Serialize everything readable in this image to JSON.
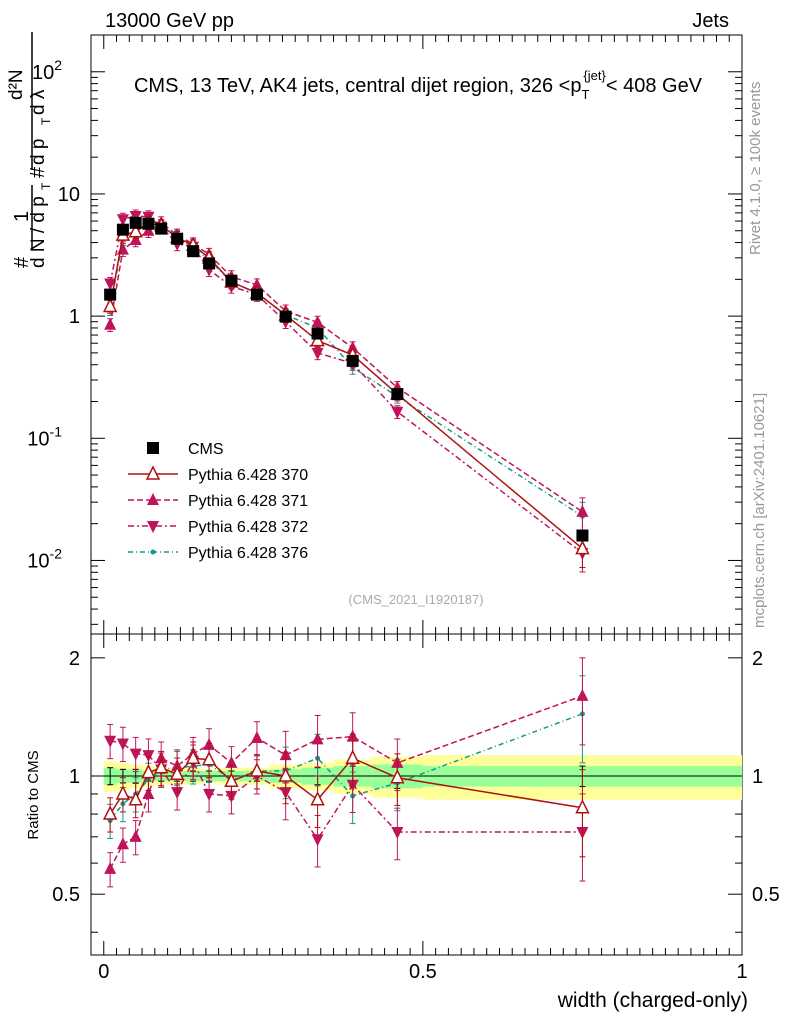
{
  "header": {
    "left": "13000 GeV pp",
    "right": "Jets"
  },
  "side_labels": {
    "rivet": "Rivet 4.1.0, ≥ 100k events",
    "mcplots": "mcplots.cern.ch [arXiv:2401.10621]"
  },
  "chart_data": [
    {
      "type": "line",
      "title": "CMS, 13 TeV, AK4 jets, central dijet region, 326 <p_T^{jet}< 408 GeV",
      "analysis_tag": "(CMS_2021_I1920187)",
      "xlabel": "width (charged-only)",
      "ylabel": "1/dN/dpT · d²N/dpT dλ",
      "yscale": "log",
      "xlim": [
        -0.02,
        1.0
      ],
      "ylim": [
        0.0025,
        200
      ],
      "y_tick_labels": [
        "10^{-2}",
        "10^{-1}",
        "1",
        "10",
        "10^{2}"
      ],
      "x_tick_labels": [
        "0",
        "0.5",
        "1"
      ],
      "x": [
        0.01,
        0.03,
        0.05,
        0.07,
        0.09,
        0.115,
        0.14,
        0.165,
        0.2,
        0.24,
        0.285,
        0.335,
        0.39,
        0.46,
        0.75
      ],
      "x_edges": [
        0.0,
        0.02,
        0.04,
        0.06,
        0.08,
        0.1,
        0.13,
        0.15,
        0.18,
        0.22,
        0.26,
        0.31,
        0.36,
        0.42,
        0.5,
        1.0
      ],
      "legend": [
        "CMS",
        "Pythia 6.428 370",
        "Pythia 6.428 371",
        "Pythia 6.428 372",
        "Pythia 6.428 376"
      ],
      "series": [
        {
          "name": "CMS",
          "color": "#000000",
          "marker": "square",
          "values": [
            1.5,
            5.1,
            5.8,
            5.7,
            5.2,
            4.3,
            3.4,
            2.7,
            1.95,
            1.5,
            0.99,
            0.72,
            0.43,
            0.23,
            0.016
          ]
        },
        {
          "name": "Pythia 6.428 370",
          "color": "#b01010",
          "marker": "triangle-up-open",
          "dash": "",
          "values": [
            1.2,
            4.6,
            4.9,
            5.8,
            5.5,
            4.4,
            3.8,
            3.0,
            1.9,
            1.55,
            1.02,
            0.63,
            0.48,
            0.23,
            0.0125
          ]
        },
        {
          "name": "Pythia 6.428 371",
          "color": "#c0145a",
          "marker": "triangle-up",
          "dash": "6,3",
          "values": [
            0.85,
            3.5,
            4.2,
            5.0,
            5.8,
            4.6,
            3.9,
            3.2,
            2.1,
            1.8,
            1.1,
            0.89,
            0.55,
            0.26,
            0.025
          ]
        },
        {
          "name": "Pythia 6.428 372",
          "color": "#c0145a",
          "marker": "triangle-down",
          "dash": "6,3,2,3",
          "values": [
            1.85,
            6.2,
            6.6,
            6.5,
            5.4,
            3.9,
            3.7,
            2.4,
            1.75,
            1.5,
            0.9,
            0.5,
            0.41,
            0.165,
            0.0115
          ]
        },
        {
          "name": "Pythia 6.428 376",
          "color": "#139a8a",
          "marker": "dot",
          "dash": "5,3,1,3",
          "values": [
            1.15,
            4.3,
            5.2,
            5.6,
            5.4,
            4.5,
            3.6,
            2.9,
            1.9,
            1.55,
            1.02,
            0.8,
            0.38,
            0.22,
            0.023
          ]
        }
      ]
    },
    {
      "type": "line",
      "ylabel": "Ratio to CMS",
      "xlabel": "width (charged-only)",
      "xlim": [
        -0.02,
        1.0
      ],
      "ylim": [
        0.35,
        2.3
      ],
      "y_tick_labels": [
        "0.5",
        "1",
        "2"
      ],
      "x_tick_labels": [
        "0",
        "0.5",
        "1"
      ],
      "band_stat": [
        0.05,
        0.04,
        0.04,
        0.03,
        0.03,
        0.03,
        0.03,
        0.03,
        0.03,
        0.03,
        0.04,
        0.05,
        0.06,
        0.07,
        0.06
      ],
      "band_total": [
        0.09,
        0.08,
        0.07,
        0.06,
        0.05,
        0.05,
        0.05,
        0.04,
        0.05,
        0.05,
        0.07,
        0.08,
        0.1,
        0.12,
        0.13
      ],
      "series": [
        {
          "name": "Pythia 6.428 370",
          "values": [
            0.8,
            0.9,
            0.87,
            1.02,
            1.05,
            1.01,
            1.11,
            1.1,
            0.97,
            1.03,
            1.0,
            0.87,
            1.11,
            0.99,
            0.83
          ]
        },
        {
          "name": "Pythia 6.428 371",
          "values": [
            0.58,
            0.67,
            0.7,
            0.9,
            1.11,
            1.06,
            1.14,
            1.2,
            1.08,
            1.25,
            1.13,
            1.24,
            1.26,
            1.08,
            1.6
          ]
        },
        {
          "name": "Pythia 6.428 372",
          "values": [
            1.23,
            1.21,
            1.14,
            1.13,
            1.04,
            0.91,
            1.09,
            0.9,
            0.89,
            1.0,
            0.91,
            0.69,
            0.95,
            0.72,
            0.72
          ]
        },
        {
          "name": "Pythia 6.428 376",
          "values": [
            0.77,
            0.85,
            0.9,
            0.98,
            1.04,
            1.05,
            1.06,
            1.07,
            0.98,
            1.03,
            1.03,
            1.11,
            0.89,
            0.96,
            1.44
          ]
        }
      ]
    }
  ]
}
